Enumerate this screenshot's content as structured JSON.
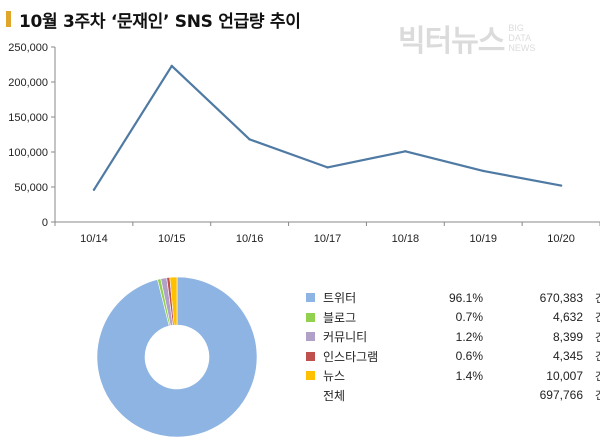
{
  "header": {
    "title": "10월 3주차 ‘문재인’ SNS 언급량 추이"
  },
  "watermark": {
    "main": "빅터뉴스",
    "sub1": "BIG",
    "sub2": "DATA",
    "sub3": "NEWS"
  },
  "colors": {
    "line": "#4f7aa3",
    "title_mark": "#e0a52b"
  },
  "chart_data": [
    {
      "type": "line",
      "categories": [
        "10/14",
        "10/15",
        "10/16",
        "10/17",
        "10/18",
        "10/19",
        "10/20"
      ],
      "values": [
        46000,
        223000,
        118000,
        78000,
        101000,
        73000,
        52000
      ],
      "ylim": [
        0,
        250000
      ],
      "yticks": [
        "0",
        "50,000",
        "100,000",
        "150,000",
        "200,000",
        "250,000"
      ],
      "ytick_values": [
        0,
        50000,
        100000,
        150000,
        200000,
        250000
      ],
      "grid": false
    },
    {
      "type": "pie",
      "labels": [
        "트위터",
        "블로그",
        "커뮤니티",
        "인스타그램",
        "뉴스"
      ],
      "values": [
        670383,
        4632,
        8399,
        4345,
        10007
      ],
      "percents": [
        "96.1%",
        "0.7%",
        "1.2%",
        "0.6%",
        "1.4%"
      ],
      "value_labels": [
        "670,383",
        "4,632",
        "8,399",
        "4,345",
        "10,007"
      ],
      "colors": [
        "#8db4e2",
        "#92d050",
        "#b1a0c7",
        "#c0504d",
        "#ffc000"
      ],
      "total_label": "전체",
      "total_value": "697,766",
      "unit": "건",
      "legend": "right",
      "donut": true
    }
  ]
}
